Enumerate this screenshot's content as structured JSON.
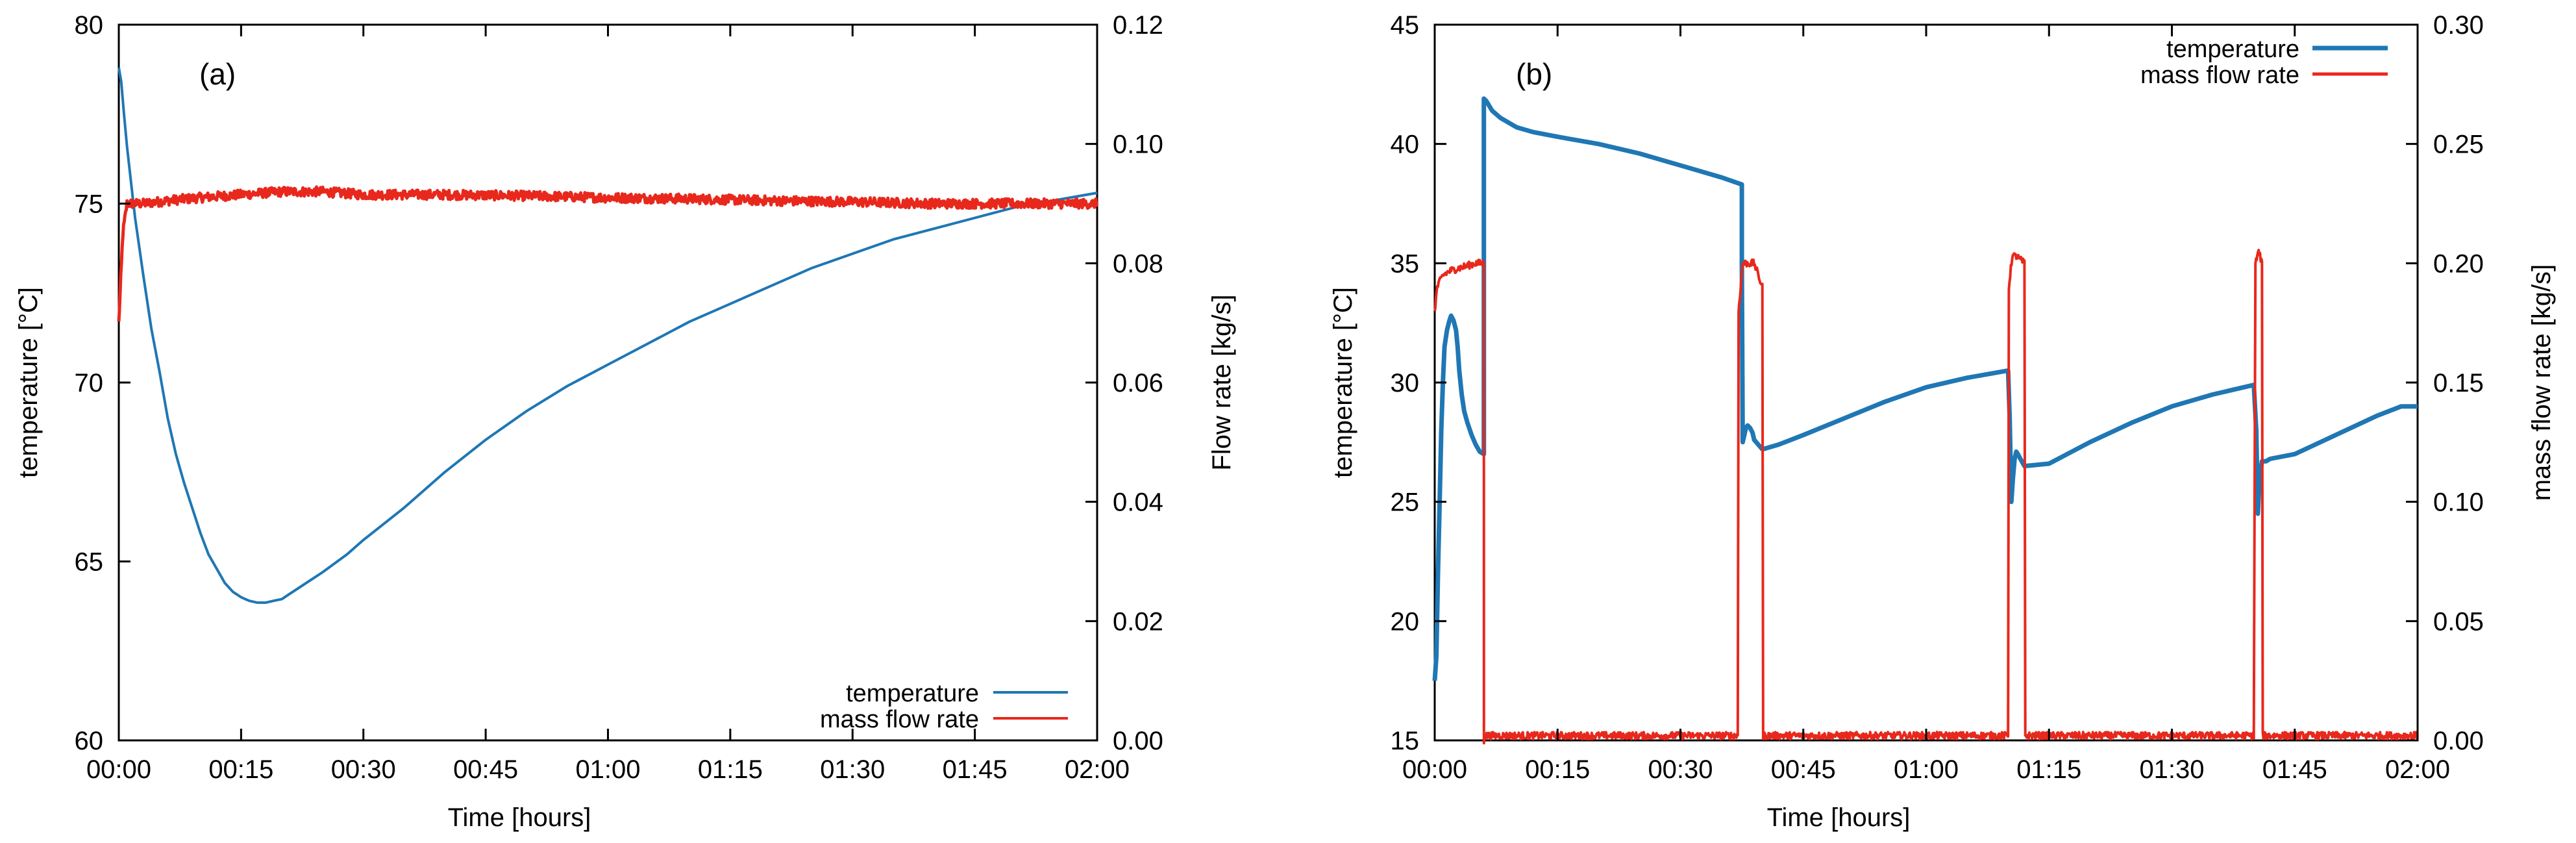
{
  "chart_data": [
    {
      "type": "line",
      "panel_label": "(a)",
      "xlabel": "Time [hours]",
      "ylabel_left": "temperature [°C]",
      "ylabel_right": "Flow rate [kg/s]",
      "x_tick_labels": [
        "00:00",
        "00:15",
        "00:30",
        "00:45",
        "01:00",
        "01:15",
        "01:30",
        "01:45",
        "02:00"
      ],
      "xlim_minutes": [
        0,
        120
      ],
      "ylim_left": [
        60,
        80
      ],
      "y_left_ticks": [
        "60",
        "65",
        "70",
        "75",
        "80"
      ],
      "ylim_right": [
        0,
        0.12
      ],
      "y_right_ticks": [
        "0.00",
        "0.02",
        "0.04",
        "0.06",
        "0.08",
        "0.10",
        "0.12"
      ],
      "legend": [
        "temperature",
        "mass flow rate"
      ],
      "legend_position": "bottom-right",
      "colors": {
        "temperature": "#1f77b4",
        "mass_flow_rate": "#e8281c"
      },
      "series": [
        {
          "name": "temperature",
          "axis": "left",
          "x": [
            0,
            0.3,
            0.6,
            1,
            1.5,
            2,
            3,
            4,
            5,
            6,
            7,
            8,
            9,
            10,
            11,
            12,
            13,
            14,
            15,
            16,
            17,
            18,
            19,
            20,
            21,
            22,
            23,
            25,
            28,
            30,
            35,
            40,
            45,
            50,
            55,
            60,
            65,
            70,
            75,
            80,
            85,
            90,
            95,
            100,
            105,
            110,
            115,
            120
          ],
          "y": [
            78.8,
            78.4,
            77.6,
            76.6,
            75.6,
            74.6,
            73.0,
            71.5,
            70.3,
            69.0,
            68.0,
            67.2,
            66.5,
            65.8,
            65.2,
            64.8,
            64.4,
            64.15,
            64.0,
            63.9,
            63.85,
            63.85,
            63.9,
            63.95,
            64.1,
            64.25,
            64.4,
            64.7,
            65.2,
            65.6,
            66.5,
            67.5,
            68.4,
            69.2,
            69.9,
            70.5,
            71.1,
            71.7,
            72.2,
            72.7,
            73.2,
            73.6,
            74.0,
            74.3,
            74.6,
            74.9,
            75.1,
            75.3
          ]
        },
        {
          "name": "mass flow rate",
          "axis": "right",
          "x": [
            0,
            0.5,
            1,
            3,
            6,
            10,
            15,
            20,
            25,
            30,
            35,
            40,
            50,
            60,
            70,
            80,
            90,
            100,
            110,
            120
          ],
          "y": [
            0.07,
            0.085,
            0.09,
            0.09,
            0.0905,
            0.091,
            0.0915,
            0.092,
            0.092,
            0.0915,
            0.0915,
            0.0915,
            0.0913,
            0.091,
            0.0908,
            0.0905,
            0.0903,
            0.09,
            0.09,
            0.09
          ],
          "noise": 0.0008
        }
      ]
    },
    {
      "type": "line",
      "panel_label": "(b)",
      "xlabel": "Time [hours]",
      "ylabel_left": "temperature [°C]",
      "ylabel_right": "mass flow rate [kg/s]",
      "x_tick_labels": [
        "00:00",
        "00:15",
        "00:30",
        "00:45",
        "01:00",
        "01:15",
        "01:30",
        "01:45",
        "02:00"
      ],
      "xlim_minutes": [
        0,
        120
      ],
      "ylim_left": [
        15,
        45
      ],
      "y_left_ticks": [
        "15",
        "20",
        "25",
        "30",
        "35",
        "40",
        "45"
      ],
      "ylim_right": [
        0,
        0.3
      ],
      "y_right_ticks": [
        "0.00",
        "0.05",
        "0.10",
        "0.15",
        "0.20",
        "0.25",
        "0.30"
      ],
      "legend": [
        "temperature",
        "mass flow rate"
      ],
      "legend_position": "top-right",
      "colors": {
        "temperature": "#1f77b4",
        "mass_flow_rate": "#e8281c"
      },
      "series": [
        {
          "name": "temperature",
          "axis": "left",
          "x": [
            0,
            0.2,
            0.4,
            0.6,
            0.8,
            1,
            1.2,
            1.5,
            1.8,
            2,
            2.3,
            2.6,
            2.8,
            3,
            3.3,
            3.6,
            4,
            4.5,
            5,
            5.5,
            6,
            6,
            6.3,
            7,
            8,
            10,
            12,
            15,
            20,
            25,
            30,
            35,
            37.5,
            37.5,
            37.6,
            37.8,
            38,
            38.2,
            38.5,
            38.8,
            39,
            40,
            42,
            45,
            50,
            55,
            60,
            65,
            70,
            70.2,
            70.4,
            70.6,
            70.8,
            71,
            71.2,
            71.5,
            72,
            75,
            80,
            85,
            90,
            95,
            100,
            100.3,
            100.5,
            100.7,
            101,
            101.5,
            102,
            105,
            110,
            115,
            118,
            120
          ],
          "y": [
            17.5,
            18.5,
            22,
            25,
            28,
            30,
            31.5,
            32.2,
            32.6,
            32.8,
            32.6,
            32.2,
            31.5,
            30.5,
            29.5,
            28.8,
            28.3,
            27.8,
            27.4,
            27.1,
            27.0,
            41.9,
            41.8,
            41.4,
            41.1,
            40.7,
            40.5,
            40.3,
            40.0,
            39.6,
            39.1,
            38.6,
            38.3,
            35.0,
            27.5,
            27.8,
            28.1,
            28.2,
            28.1,
            27.9,
            27.6,
            27.2,
            27.4,
            27.8,
            28.5,
            29.2,
            29.8,
            30.2,
            30.5,
            28.5,
            25.0,
            26.0,
            26.8,
            27.1,
            27.0,
            26.8,
            26.5,
            26.6,
            27.5,
            28.3,
            29.0,
            29.5,
            29.9,
            28.0,
            24.5,
            26.0,
            26.7,
            26.7,
            26.8,
            27.0,
            27.8,
            28.6,
            29.0,
            29.0
          ]
        },
        {
          "name": "mass flow rate",
          "axis": "right",
          "x": [
            0,
            0.3,
            1,
            2,
            3,
            4,
            5,
            6,
            6.01,
            6.1,
            30,
            37,
            37.1,
            37.6,
            38,
            39,
            40,
            40.1,
            50,
            70,
            70.1,
            70.5,
            71,
            72,
            72.1,
            90,
            100,
            100.2,
            100.6,
            101,
            101.1,
            120
          ],
          "y": [
            0.18,
            0.19,
            0.195,
            0.197,
            0.198,
            0.199,
            0.2,
            0.2,
            0.0,
            0.002,
            0.002,
            0.002,
            0.18,
            0.2,
            0.2,
            0.2,
            0.19,
            0.002,
            0.002,
            0.002,
            0.19,
            0.203,
            0.203,
            0.2,
            0.002,
            0.002,
            0.002,
            0.2,
            0.205,
            0.2,
            0.002,
            0.002
          ],
          "noise": 0.0015
        }
      ]
    }
  ]
}
